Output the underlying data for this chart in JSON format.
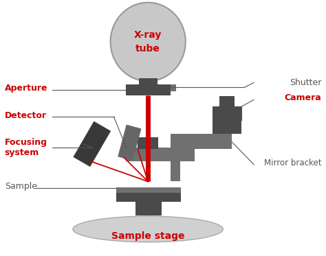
{
  "bg_color": "#ffffff",
  "dark_gray": "#4a4a4a",
  "mid_gray": "#707070",
  "light_gray": "#c8c8c8",
  "very_light_gray": "#d0d0d0",
  "red": "#cc0000",
  "line_color": "#555555",
  "labels": {
    "xray_tube": [
      "X-ray",
      "tube"
    ],
    "aperture": "Aperture",
    "detector": "Detector",
    "focusing_system": [
      "Focusing",
      "system"
    ],
    "sample": "Sample",
    "sample_stage": "Sample stage",
    "shutter": "Shutter",
    "camera": "Camera",
    "mirror_bracket": "Mirror bracket"
  },
  "figsize": [
    4.74,
    3.73
  ],
  "dpi": 100
}
